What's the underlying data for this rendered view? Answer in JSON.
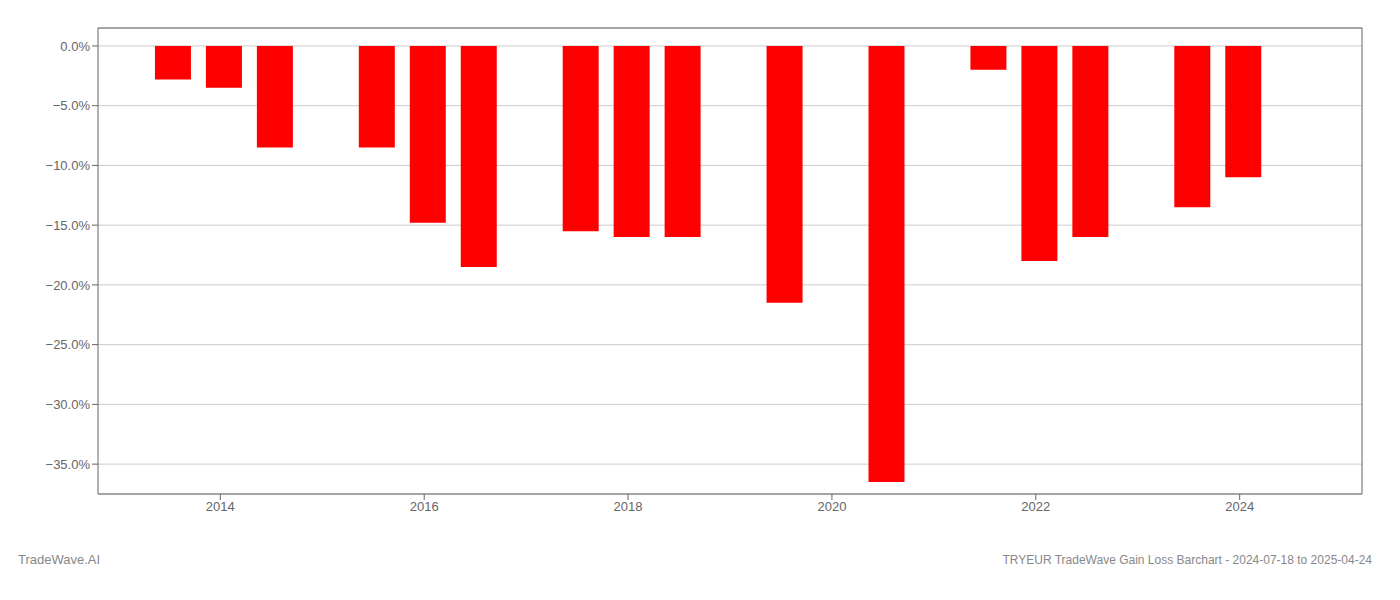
{
  "chart_data": {
    "type": "bar",
    "title": "TRYEUR TradeWave Gain Loss Barchart - 2024-07-18 to 2025-04-24",
    "annotations": [
      "TradeWave.AI"
    ],
    "x": [
      2013.54,
      2014.04,
      2014.54,
      2015.54,
      2016.04,
      2016.54,
      2017.54,
      2018.04,
      2018.54,
      2019.54,
      2020.54,
      2021.54,
      2022.04,
      2022.54,
      2023.54,
      2024.04
    ],
    "values": [
      -2.8,
      -3.5,
      -8.5,
      -8.5,
      -14.8,
      -18.5,
      -15.5,
      -16.0,
      -16.0,
      -21.5,
      -36.5,
      -2.0,
      -18.0,
      -16.0,
      -13.5,
      -11.0
    ],
    "color": "#ff0000",
    "xlim": [
      2012.8,
      2025.2
    ],
    "xticks": [
      2014,
      2016,
      2018,
      2020,
      2022,
      2024
    ],
    "ylim": [
      -37.5,
      1.5
    ],
    "yticks": [
      {
        "value": 0,
        "label": "0.0%"
      },
      {
        "value": -5,
        "label": "−5.0%"
      },
      {
        "value": -10,
        "label": "−10.0%"
      },
      {
        "value": -15,
        "label": "−15.0%"
      },
      {
        "value": -20,
        "label": "−20.0%"
      },
      {
        "value": -25,
        "label": "−25.0%"
      },
      {
        "value": -30,
        "label": "−30.0%"
      },
      {
        "value": -35,
        "label": "−35.0%"
      }
    ],
    "grid": "y"
  }
}
